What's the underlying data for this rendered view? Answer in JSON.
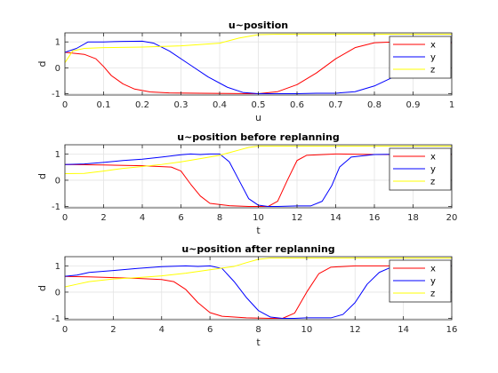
{
  "chart_data": [
    {
      "type": "line",
      "title": "u~position",
      "xlabel": "u",
      "ylabel": "d",
      "xlim": [
        0,
        1
      ],
      "ylim": [
        -1.05,
        1.35
      ],
      "xticks": [
        0,
        0.1,
        0.2,
        0.3,
        0.4,
        0.5,
        0.6,
        0.7,
        0.8,
        0.9,
        1
      ],
      "xtick_labels": [
        "0",
        "0.1",
        "0.2",
        "0.3",
        "0.4",
        "0.5",
        "0.6",
        "0.7",
        "0.8",
        "0.9",
        "1"
      ],
      "yticks": [
        -1,
        0,
        1
      ],
      "ytick_labels": [
        "-1",
        "0",
        "1"
      ],
      "grid": true,
      "legend_placement": "top-right",
      "series": [
        {
          "name": "x",
          "color": "#ff0000",
          "points": [
            [
              0,
              0.6
            ],
            [
              0.05,
              0.52
            ],
            [
              0.08,
              0.35
            ],
            [
              0.1,
              0.05
            ],
            [
              0.12,
              -0.3
            ],
            [
              0.15,
              -0.62
            ],
            [
              0.18,
              -0.82
            ],
            [
              0.22,
              -0.93
            ],
            [
              0.27,
              -0.97
            ],
            [
              0.35,
              -0.98
            ],
            [
              0.42,
              -0.99
            ],
            [
              0.48,
              -1.0
            ],
            [
              0.5,
              -1.0
            ],
            [
              0.55,
              -0.92
            ],
            [
              0.6,
              -0.65
            ],
            [
              0.65,
              -0.2
            ],
            [
              0.7,
              0.35
            ],
            [
              0.75,
              0.78
            ],
            [
              0.8,
              0.97
            ],
            [
              0.85,
              1.0
            ],
            [
              0.9,
              0.98
            ],
            [
              0.95,
              0.95
            ],
            [
              1,
              0.95
            ]
          ]
        },
        {
          "name": "y",
          "color": "#0000ff",
          "points": [
            [
              0,
              0.6
            ],
            [
              0.03,
              0.75
            ],
            [
              0.06,
              1.0
            ],
            [
              0.1,
              1.0
            ],
            [
              0.15,
              1.02
            ],
            [
              0.2,
              1.03
            ],
            [
              0.23,
              0.95
            ],
            [
              0.27,
              0.65
            ],
            [
              0.32,
              0.15
            ],
            [
              0.37,
              -0.35
            ],
            [
              0.42,
              -0.75
            ],
            [
              0.46,
              -0.95
            ],
            [
              0.5,
              -1.0
            ],
            [
              0.55,
              -1.0
            ],
            [
              0.6,
              -1.0
            ],
            [
              0.65,
              -0.98
            ],
            [
              0.7,
              -0.98
            ],
            [
              0.75,
              -0.92
            ],
            [
              0.8,
              -0.7
            ],
            [
              0.85,
              -0.35
            ],
            [
              0.88,
              -0.05
            ],
            [
              0.91,
              0.4
            ],
            [
              0.94,
              0.8
            ],
            [
              0.97,
              0.95
            ],
            [
              1,
              1.0
            ]
          ]
        },
        {
          "name": "z",
          "color": "#ffff00",
          "points": [
            [
              0,
              0.2
            ],
            [
              0.02,
              0.65
            ],
            [
              0.05,
              0.75
            ],
            [
              0.1,
              0.78
            ],
            [
              0.2,
              0.8
            ],
            [
              0.3,
              0.85
            ],
            [
              0.4,
              0.95
            ],
            [
              0.45,
              1.15
            ],
            [
              0.5,
              1.28
            ],
            [
              0.55,
              1.3
            ],
            [
              0.6,
              1.3
            ],
            [
              0.7,
              1.3
            ],
            [
              0.8,
              1.3
            ],
            [
              0.9,
              1.3
            ],
            [
              1,
              1.3
            ]
          ]
        }
      ]
    },
    {
      "type": "line",
      "title": "u~position before replanning",
      "xlabel": "t",
      "ylabel": "d",
      "xlim": [
        0,
        20
      ],
      "ylim": [
        -1.05,
        1.35
      ],
      "xticks": [
        0,
        2,
        4,
        6,
        8,
        10,
        12,
        14,
        16,
        18,
        20
      ],
      "xtick_labels": [
        "0",
        "2",
        "4",
        "6",
        "8",
        "10",
        "12",
        "14",
        "16",
        "18",
        "20"
      ],
      "yticks": [
        -1,
        0,
        1
      ],
      "ytick_labels": [
        "-1",
        "0",
        "1"
      ],
      "grid": true,
      "legend_placement": "right",
      "series": [
        {
          "name": "x",
          "color": "#ff0000",
          "points": [
            [
              0,
              0.6
            ],
            [
              2,
              0.58
            ],
            [
              4,
              0.55
            ],
            [
              5.5,
              0.5
            ],
            [
              6,
              0.35
            ],
            [
              6.5,
              -0.15
            ],
            [
              7,
              -0.6
            ],
            [
              7.5,
              -0.88
            ],
            [
              8.5,
              -0.97
            ],
            [
              9.5,
              -1.0
            ],
            [
              10.5,
              -1.0
            ],
            [
              11,
              -0.8
            ],
            [
              11.5,
              0.0
            ],
            [
              12,
              0.75
            ],
            [
              12.5,
              0.95
            ],
            [
              14,
              1.0
            ],
            [
              16,
              0.98
            ],
            [
              18,
              0.98
            ],
            [
              20,
              0.98
            ]
          ]
        },
        {
          "name": "y",
          "color": "#0000ff",
          "points": [
            [
              0,
              0.6
            ],
            [
              1,
              0.62
            ],
            [
              2,
              0.68
            ],
            [
              3,
              0.75
            ],
            [
              4,
              0.8
            ],
            [
              5,
              0.88
            ],
            [
              6,
              0.97
            ],
            [
              6.5,
              1.0
            ],
            [
              7,
              0.98
            ],
            [
              7.5,
              1.0
            ],
            [
              8,
              1.0
            ],
            [
              8.5,
              0.7
            ],
            [
              9,
              0.0
            ],
            [
              9.5,
              -0.7
            ],
            [
              10,
              -0.95
            ],
            [
              10.5,
              -1.0
            ],
            [
              11,
              -1.0
            ],
            [
              12,
              -0.98
            ],
            [
              12.7,
              -0.98
            ],
            [
              13.3,
              -0.8
            ],
            [
              13.8,
              -0.2
            ],
            [
              14.2,
              0.5
            ],
            [
              14.8,
              0.88
            ],
            [
              16,
              0.98
            ],
            [
              18,
              1.0
            ],
            [
              20,
              1.0
            ]
          ]
        },
        {
          "name": "z",
          "color": "#ffff00",
          "points": [
            [
              0,
              0.25
            ],
            [
              1,
              0.26
            ],
            [
              2,
              0.35
            ],
            [
              3,
              0.45
            ],
            [
              4,
              0.52
            ],
            [
              5,
              0.6
            ],
            [
              6,
              0.7
            ],
            [
              7,
              0.82
            ],
            [
              8,
              0.95
            ],
            [
              9,
              1.15
            ],
            [
              9.5,
              1.25
            ],
            [
              10,
              1.3
            ],
            [
              12,
              1.3
            ],
            [
              14,
              1.3
            ],
            [
              16,
              1.3
            ],
            [
              18,
              1.3
            ],
            [
              20,
              1.3
            ]
          ]
        }
      ]
    },
    {
      "type": "line",
      "title": "u~position after replanning",
      "xlabel": "t",
      "ylabel": "d",
      "xlim": [
        0,
        16
      ],
      "ylim": [
        -1.05,
        1.35
      ],
      "xticks": [
        0,
        2,
        4,
        6,
        8,
        10,
        12,
        14,
        16
      ],
      "xtick_labels": [
        "0",
        "2",
        "4",
        "6",
        "8",
        "10",
        "12",
        "14",
        "16"
      ],
      "yticks": [
        -1,
        0,
        1
      ],
      "ytick_labels": [
        "-1",
        "0",
        "1"
      ],
      "grid": true,
      "legend_placement": "right",
      "series": [
        {
          "name": "x",
          "color": "#ff0000",
          "points": [
            [
              0,
              0.6
            ],
            [
              1,
              0.58
            ],
            [
              2,
              0.55
            ],
            [
              3,
              0.52
            ],
            [
              4,
              0.48
            ],
            [
              4.5,
              0.4
            ],
            [
              5,
              0.1
            ],
            [
              5.5,
              -0.4
            ],
            [
              6,
              -0.78
            ],
            [
              6.5,
              -0.92
            ],
            [
              7.5,
              -0.98
            ],
            [
              8.5,
              -1.0
            ],
            [
              9,
              -1.0
            ],
            [
              9.5,
              -0.8
            ],
            [
              10,
              0.0
            ],
            [
              10.5,
              0.7
            ],
            [
              11,
              0.95
            ],
            [
              12,
              1.0
            ],
            [
              14,
              1.0
            ],
            [
              16,
              1.0
            ]
          ]
        },
        {
          "name": "y",
          "color": "#0000ff",
          "points": [
            [
              0,
              0.6
            ],
            [
              0.5,
              0.65
            ],
            [
              1,
              0.75
            ],
            [
              2,
              0.82
            ],
            [
              3,
              0.9
            ],
            [
              4,
              0.97
            ],
            [
              5,
              1.0
            ],
            [
              5.5,
              0.98
            ],
            [
              6,
              1.0
            ],
            [
              6.5,
              0.9
            ],
            [
              7,
              0.4
            ],
            [
              7.5,
              -0.2
            ],
            [
              8,
              -0.7
            ],
            [
              8.5,
              -0.95
            ],
            [
              9,
              -1.0
            ],
            [
              9.5,
              -1.0
            ],
            [
              10,
              -0.98
            ],
            [
              11,
              -0.98
            ],
            [
              11.5,
              -0.85
            ],
            [
              12,
              -0.4
            ],
            [
              12.5,
              0.3
            ],
            [
              13,
              0.75
            ],
            [
              13.5,
              0.95
            ],
            [
              14,
              1.0
            ],
            [
              16,
              1.0
            ]
          ]
        },
        {
          "name": "z",
          "color": "#ffff00",
          "points": [
            [
              0,
              0.2
            ],
            [
              0.5,
              0.3
            ],
            [
              1,
              0.4
            ],
            [
              2,
              0.5
            ],
            [
              3,
              0.55
            ],
            [
              4,
              0.62
            ],
            [
              5,
              0.72
            ],
            [
              6,
              0.85
            ],
            [
              7,
              0.98
            ],
            [
              7.5,
              1.12
            ],
            [
              8,
              1.25
            ],
            [
              8.5,
              1.3
            ],
            [
              10,
              1.3
            ],
            [
              12,
              1.3
            ],
            [
              14,
              1.3
            ],
            [
              16,
              1.3
            ]
          ]
        }
      ]
    }
  ]
}
